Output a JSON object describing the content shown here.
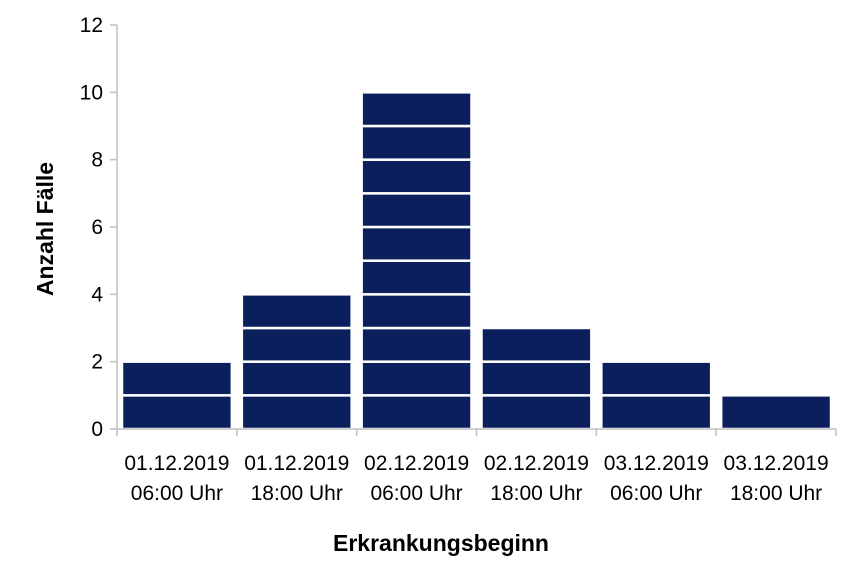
{
  "chart_data": {
    "type": "bar",
    "title": "",
    "xlabel": "Erkrankungsbeginn",
    "ylabel": "Anzahl Fälle",
    "categories": [
      [
        "01.12.2019",
        "06:00 Uhr"
      ],
      [
        "01.12.2019",
        "18:00 Uhr"
      ],
      [
        "02.12.2019",
        "06:00 Uhr"
      ],
      [
        "02.12.2019",
        "18:00 Uhr"
      ],
      [
        "03.12.2019",
        "06:00 Uhr"
      ],
      [
        "03.12.2019",
        "18:00 Uhr"
      ]
    ],
    "values": [
      2,
      4,
      10,
      3,
      2,
      1
    ],
    "ylim": [
      0,
      12
    ],
    "yticks": [
      0,
      2,
      4,
      6,
      8,
      10,
      12
    ],
    "stacked_unit_boxes": true,
    "grid": false,
    "legend": "none",
    "colors": {
      "bar": "#0b1f5c",
      "bar_separator": "#ffffff",
      "axis": "#bfbfbf"
    }
  }
}
